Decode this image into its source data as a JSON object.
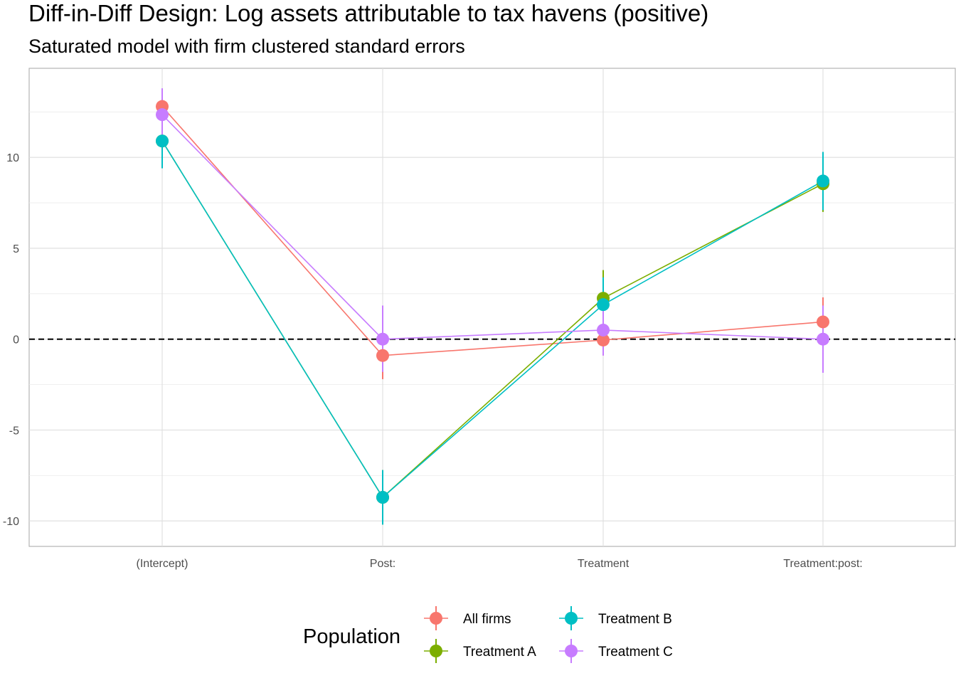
{
  "chart_data": {
    "type": "line",
    "title": "Diff-in-Diff Design: Log assets attributable to tax havens (positive)",
    "subtitle": "Saturated model with firm clustered standard errors",
    "xlabel": "",
    "ylabel": "",
    "categories": [
      "(Intercept)",
      "Post:",
      "Treatment",
      "Treatment:post:"
    ],
    "ylim": [
      -11.4,
      14.9
    ],
    "yticks": [
      10,
      5,
      0,
      -5,
      -10
    ],
    "ytick_labels": [
      "10",
      "5",
      "0",
      "-5",
      "-10"
    ],
    "grid": true,
    "reference_line": {
      "y": 0,
      "style": "dashed"
    },
    "legend": {
      "title": "Population",
      "position": "bottom"
    },
    "series": [
      {
        "name": "All firms",
        "color": "#F8766D",
        "values": [
          12.8,
          -0.9,
          -0.05,
          0.95
        ],
        "ci_low": [
          11.9,
          -2.2,
          -0.9,
          -0.4
        ],
        "ci_high": [
          13.7,
          0.4,
          0.8,
          2.3
        ]
      },
      {
        "name": "Treatment A",
        "color": "#7CAE00",
        "values": [
          10.9,
          -8.7,
          2.25,
          8.55
        ],
        "ci_low": [
          9.4,
          -10.2,
          0.8,
          7.0
        ],
        "ci_high": [
          12.4,
          -7.2,
          3.8,
          10.1
        ]
      },
      {
        "name": "Treatment B",
        "color": "#00BFC4",
        "values": [
          10.9,
          -8.7,
          1.9,
          8.7
        ],
        "ci_low": [
          9.4,
          -10.2,
          0.4,
          7.1
        ],
        "ci_high": [
          12.4,
          -7.2,
          3.4,
          10.3
        ]
      },
      {
        "name": "Treatment C",
        "color": "#C77CFF",
        "values": [
          12.35,
          0.0,
          0.5,
          0.0
        ],
        "ci_low": [
          10.9,
          -1.8,
          -0.9,
          -1.85
        ],
        "ci_high": [
          13.8,
          1.85,
          1.9,
          1.85
        ]
      }
    ]
  }
}
